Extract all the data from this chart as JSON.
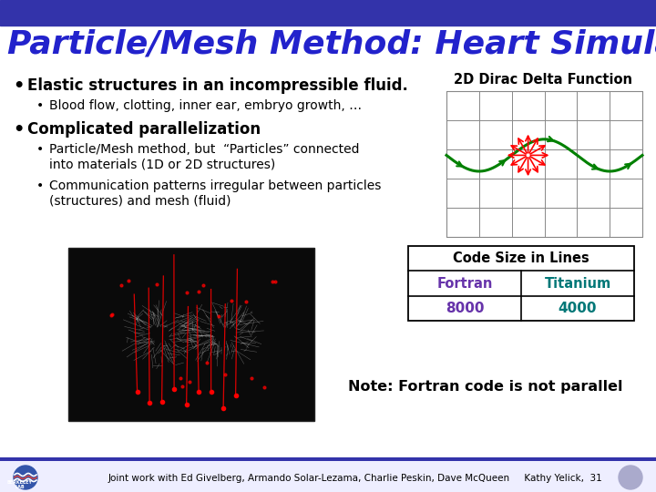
{
  "title": "Particle/Mesh Method: Heart Simulation",
  "title_color": "#2222CC",
  "title_fontsize": 26,
  "header_bar_color": "#3333AA",
  "bg_color": "#FFFFFF",
  "bullet1": "Elastic structures in an incompressible fluid.",
  "sub_bullet1": "Blood flow, clotting, inner ear, embryo growth, …",
  "bullet2": "Complicated parallelization",
  "sub_bullet2a": "Particle/Mesh method, but  “Particles” connected\ninto materials (1D or 2D structures)",
  "sub_bullet2b": "Communication patterns irregular between particles\n(structures) and mesh (fluid)",
  "dirac_label": "2D Dirac Delta Function",
  "table_header": "Code Size in Lines",
  "col1_label": "Fortran",
  "col2_label": "Titanium",
  "col1_val": "8000",
  "col2_val": "4000",
  "col1_color": "#6633AA",
  "col2_color": "#007777",
  "note_text": "Note: Fortran code is not parallel",
  "footer_text": "Joint work with Ed Givelberg, Armando Solar-Lezama, Charlie Peskin, Dave McQueen     Kathy Yelick,  31",
  "footer_bar_color": "#3333AA",
  "footer_bg": "#EEEEFF"
}
